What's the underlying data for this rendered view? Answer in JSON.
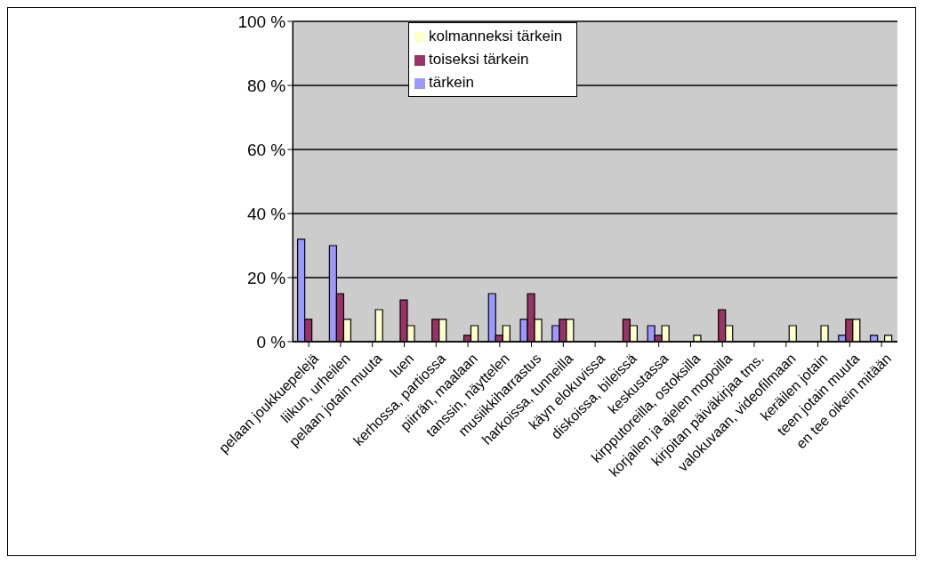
{
  "chart_data": {
    "type": "bar",
    "categories": [
      "pelaan joukkuepelejä",
      "liikun, urheilen",
      "pelaan jotain muuta",
      "luen",
      "kerhossa, partiossa",
      "piirrän, maalaan",
      "tanssin, näyttelen",
      "musiikkiharrastus",
      "harkoissa, tunneilla",
      "käyn elokuvissa",
      "diskoissa, bileissä",
      "keskustassa",
      "kirpputoreilla, ostoksilla",
      "korjailen ja ajelen mopoilla",
      "kirjoitan päiväkirjaa tms.",
      "valokuvaan, videofilmaan",
      "keräilen jotain",
      "teen jotain muuta",
      "en tee oikein mitään"
    ],
    "series": [
      {
        "name": "tärkein",
        "color": "#9999ff",
        "values": [
          32,
          30,
          0,
          0,
          0,
          0,
          15,
          7,
          5,
          0,
          0,
          5,
          0,
          0,
          0,
          0,
          0,
          2,
          2
        ]
      },
      {
        "name": "toiseksi tärkein",
        "color": "#993366",
        "values": [
          7,
          15,
          0,
          13,
          7,
          2,
          2,
          15,
          7,
          0,
          7,
          2,
          0,
          10,
          0,
          0,
          0,
          7,
          0
        ]
      },
      {
        "name": "kolmanneksi tärkein",
        "color": "#ffffcc",
        "values": [
          0,
          7,
          10,
          5,
          7,
          5,
          5,
          7,
          7,
          0,
          5,
          5,
          2,
          5,
          0,
          5,
          5,
          7,
          2
        ]
      }
    ],
    "ylim": [
      0,
      100
    ],
    "yticks": [
      {
        "value": 0,
        "label": "0 %"
      },
      {
        "value": 20,
        "label": "20 %"
      },
      {
        "value": 40,
        "label": "40 %"
      },
      {
        "value": 60,
        "label": "60 %"
      },
      {
        "value": 80,
        "label": "80 %"
      },
      {
        "value": 100,
        "label": "100 %"
      }
    ],
    "grid": "y",
    "legend": "top"
  }
}
